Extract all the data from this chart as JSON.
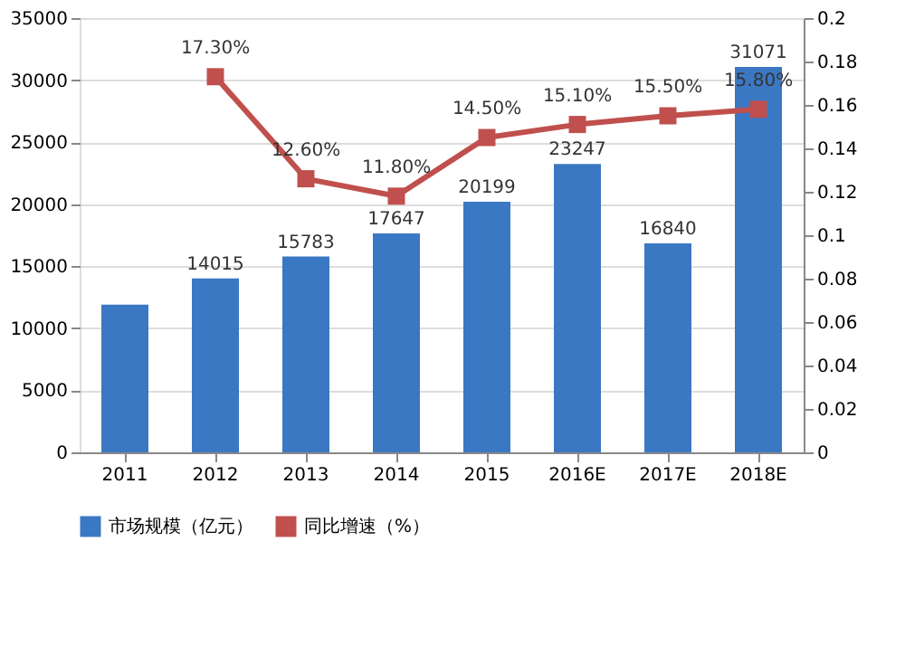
{
  "chart_data": {
    "type": "bar",
    "categories": [
      "2011",
      "2012",
      "2013",
      "2014",
      "2015",
      "2016E",
      "2017E",
      "2018E"
    ],
    "series": [
      {
        "name": "市场规模（亿元）",
        "color": "#3b78c3",
        "values": [
          11900,
          14015,
          15783,
          17647,
          20199,
          23247,
          16840,
          31071
        ],
        "value_labels": [
          null,
          "14015",
          "15783",
          "17647",
          "20199",
          "23247",
          "16840",
          "31071"
        ]
      },
      {
        "name": "同比增速（%）",
        "type": "line",
        "axis": "y2",
        "color": "#c0504d",
        "values": [
          null,
          0.173,
          0.126,
          0.118,
          0.145,
          0.151,
          0.155,
          0.158
        ],
        "value_labels": [
          null,
          "17.30%",
          "12.60%",
          "11.80%",
          "14.50%",
          "15.10%",
          "15.50%",
          "15.80%"
        ]
      }
    ],
    "ylim": [
      0,
      35000
    ],
    "yticks": [
      0,
      5000,
      10000,
      15000,
      20000,
      25000,
      30000,
      35000
    ],
    "y2lim": [
      0,
      0.2
    ],
    "y2ticks": [
      {
        "value": 0,
        "label": "0"
      },
      0.02,
      0.04,
      0.06,
      0.08,
      {
        "value": 0.1,
        "label": "0.1"
      },
      0.12,
      0.14,
      0.16,
      0.18,
      {
        "value": 0.2,
        "label": "0.2"
      }
    ],
    "grid": "y",
    "legend": "bottom",
    "marker": "square"
  }
}
